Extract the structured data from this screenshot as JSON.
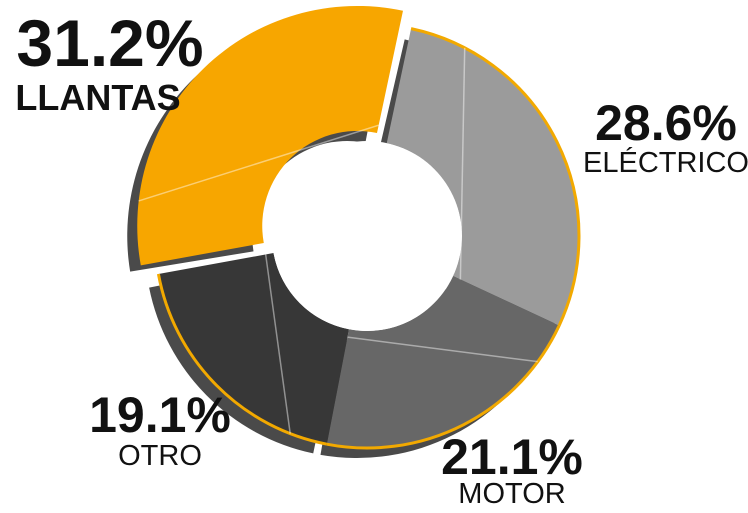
{
  "chart_data": {
    "type": "pie",
    "variant": "donut",
    "categories": [
      "LLANTAS",
      "ELÉCTRICO",
      "MOTOR",
      "OTRO"
    ],
    "values": [
      31.2,
      28.6,
      21.1,
      19.1
    ],
    "unit": "%",
    "labels": [
      {
        "percent": "31.2%",
        "name": "LLANTAS"
      },
      {
        "percent": "28.6%",
        "name": "ELÉCTRICO"
      },
      {
        "percent": "21.1%",
        "name": "MOTOR"
      },
      {
        "percent": "19.1%",
        "name": "OTRO"
      }
    ],
    "colors": {
      "LLANTAS": "#F7A600",
      "ELÉCTRICO": "#9B9B9B",
      "MOTOR": "#676767",
      "OTRO": "#373737",
      "ring_outline": "#F2A900",
      "shadow": "#4a4a4a"
    },
    "legend": "none"
  }
}
